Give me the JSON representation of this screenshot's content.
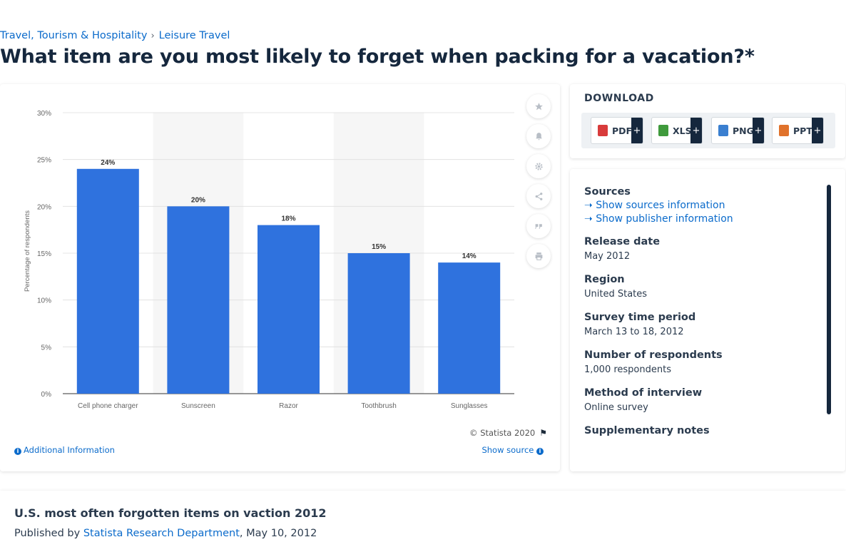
{
  "breadcrumb": {
    "items": [
      "Travel, Tourism & Hospitality",
      "Leisure Travel"
    ],
    "separator": "›"
  },
  "page_title": "What item are you most likely to forget when packing for a vacation?*",
  "chart_data": {
    "type": "bar",
    "categories": [
      "Cell phone charger",
      "Sunscreen",
      "Razor",
      "Toothbrush",
      "Sunglasses"
    ],
    "values": [
      24,
      20,
      18,
      15,
      14
    ],
    "data_labels": [
      "24%",
      "20%",
      "18%",
      "15%",
      "14%"
    ],
    "ylabel": "Percentage of respondents",
    "xlabel": "",
    "title": "",
    "ylim": [
      0,
      30
    ],
    "yticks": [
      0,
      5,
      10,
      15,
      20,
      25,
      30
    ],
    "ytick_labels": [
      "0%",
      "5%",
      "10%",
      "15%",
      "20%",
      "25%",
      "30%"
    ],
    "grid": true,
    "alternating_column_shading": true,
    "bar_color": "#2f72de"
  },
  "chart_footer": {
    "copyright": "© Statista 2020",
    "additional_info": "Additional Information",
    "show_source": "Show source"
  },
  "toolbar": {
    "icons": [
      "star-icon",
      "bell-icon",
      "gear-icon",
      "share-icon",
      "quote-icon",
      "print-icon"
    ]
  },
  "download": {
    "title": "DOWNLOAD",
    "formats": [
      {
        "label": "PDF",
        "color": "#d83b3b"
      },
      {
        "label": "XLS",
        "color": "#3f9a3c"
      },
      {
        "label": "PNG",
        "color": "#3a7fd0"
      },
      {
        "label": "PPT",
        "color": "#e0722b"
      }
    ],
    "plus": "+"
  },
  "info": {
    "sources_title": "Sources",
    "show_sources": "Show sources information",
    "show_publisher": "Show publisher information",
    "fields": [
      {
        "label": "Release date",
        "value": "May 2012"
      },
      {
        "label": "Region",
        "value": "United States"
      },
      {
        "label": "Survey time period",
        "value": "March 13 to 18, 2012"
      },
      {
        "label": "Number of respondents",
        "value": "1,000 respondents"
      },
      {
        "label": "Method of interview",
        "value": "Online survey"
      },
      {
        "label": "Supplementary notes",
        "value": ""
      }
    ]
  },
  "bottom": {
    "title": "U.S. most often forgotten items on vaction 2012",
    "published_prefix": "Published by",
    "department": "Statista Research Department",
    "date": ", May 10, 2012"
  },
  "colors": {
    "accent": "#0b6bcb",
    "title": "#15273d",
    "grid": "#dddddd",
    "shade": "#f6f6f6"
  }
}
